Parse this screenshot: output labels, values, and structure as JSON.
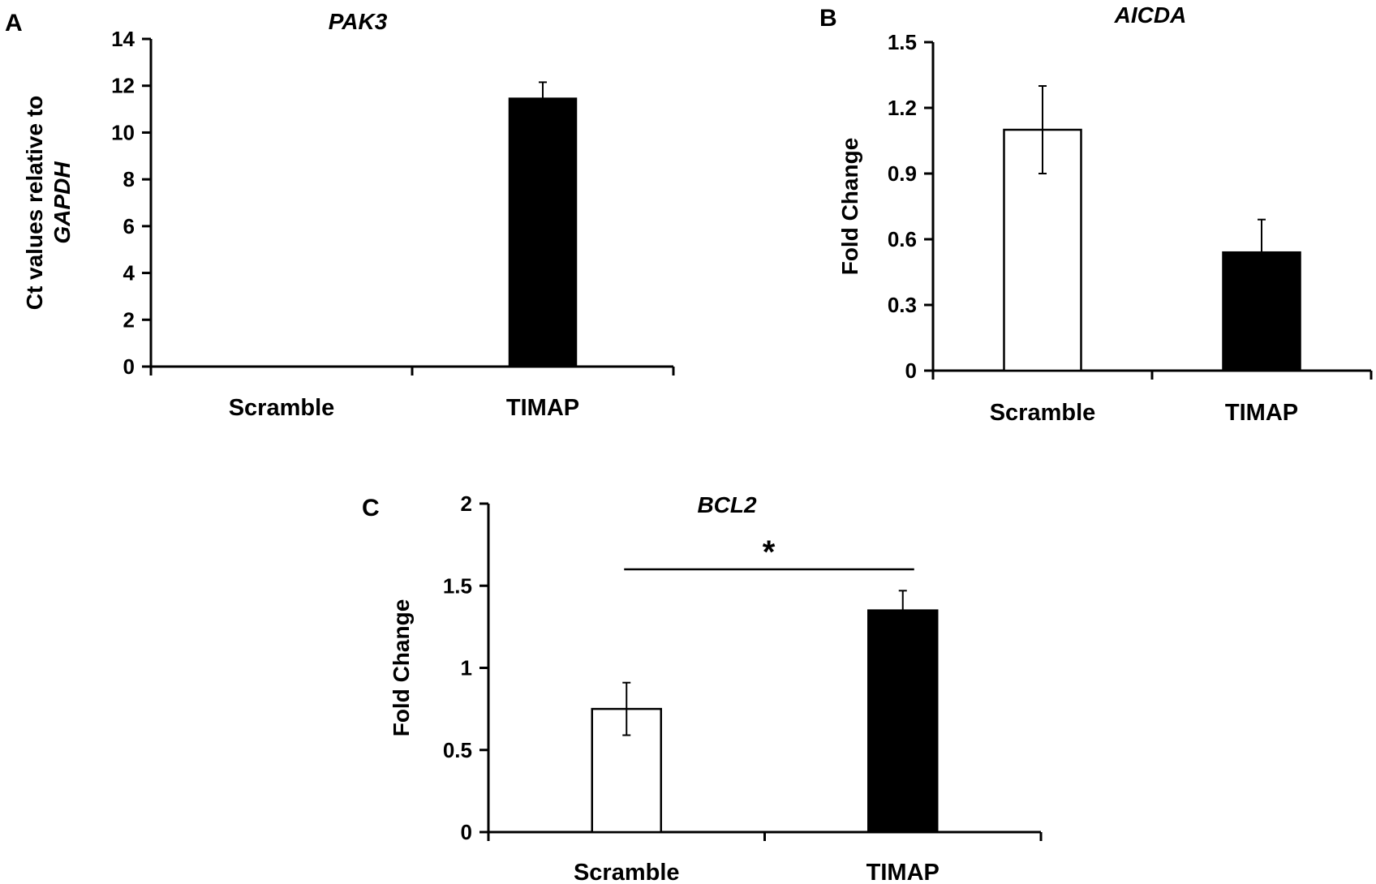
{
  "chart_data": [
    {
      "panel": "A",
      "type": "bar",
      "title": "PAK3",
      "ylabel": "Ct values relative to",
      "ylabel_italic": "GAPDH",
      "xlabel": "",
      "categories": [
        "Scramble",
        "TIMAP"
      ],
      "values": [
        0,
        11.45
      ],
      "errors": [
        0,
        0.7
      ],
      "fills": [
        "#ffffff",
        "#000000"
      ],
      "ylim": [
        0,
        14
      ],
      "yticks": [
        0,
        2,
        4,
        6,
        8,
        10,
        12,
        14
      ],
      "ytick_labels": [
        "0",
        "2",
        "4",
        "6",
        "8",
        "10",
        "12",
        "14"
      ],
      "grid": false
    },
    {
      "panel": "B",
      "type": "bar",
      "title": "AICDA",
      "ylabel": "Fold Change",
      "xlabel": "",
      "categories": [
        "Scramble",
        "TIMAP"
      ],
      "values": [
        1.1,
        0.54
      ],
      "errors": [
        0.2,
        0.15
      ],
      "fills": [
        "#ffffff",
        "#000000"
      ],
      "ylim": [
        0,
        1.5
      ],
      "yticks": [
        0,
        0.3,
        0.6,
        0.9,
        1.2,
        1.5
      ],
      "ytick_labels": [
        "0",
        "0.3",
        "0.6",
        "0.9",
        "1.2",
        "1.5"
      ],
      "grid": false
    },
    {
      "panel": "C",
      "type": "bar",
      "title": "BCL2",
      "ylabel": "Fold Change",
      "xlabel": "",
      "categories": [
        "Scramble",
        "TIMAP"
      ],
      "values": [
        0.75,
        1.35
      ],
      "errors": [
        0.16,
        0.12
      ],
      "fills": [
        "#ffffff",
        "#000000"
      ],
      "ylim": [
        0,
        2
      ],
      "yticks": [
        0,
        0.5,
        1,
        1.5,
        2
      ],
      "ytick_labels": [
        "0",
        "0.5",
        "1",
        "1.5",
        "2"
      ],
      "grid": false,
      "significance": {
        "label": "*",
        "between": [
          "Scramble",
          "TIMAP"
        ],
        "y": 1.6
      }
    }
  ]
}
